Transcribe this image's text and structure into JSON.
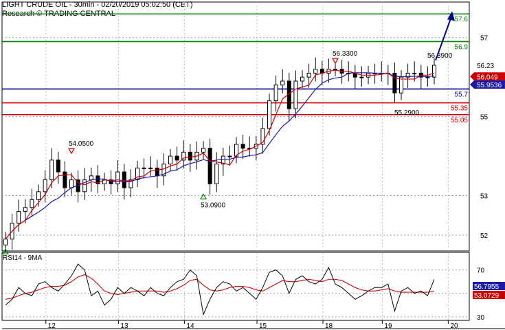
{
  "header": {
    "title": "LIGHT CRUDE OIL - 30min - 02/20/2019 05:02:50 (CET)",
    "research": "Research © TRADING CENTRAL"
  },
  "chart_data": [
    {
      "type": "candlestick",
      "panel": "price",
      "ylim": [
        51.6,
        57.9
      ],
      "yticks": [
        52,
        53,
        55,
        57
      ],
      "x_labels": [
        {
          "label": "12",
          "i": 3
        },
        {
          "label": "13",
          "i": 14
        },
        {
          "label": "14",
          "i": 24
        },
        {
          "label": "15",
          "i": 35
        },
        {
          "label": "18",
          "i": 45
        },
        {
          "label": "19",
          "i": 54
        },
        {
          "label": "20",
          "i": 64
        }
      ],
      "series_closes": [
        51.9,
        52.3,
        52.6,
        52.7,
        52.9,
        53.1,
        53.4,
        53.9,
        53.6,
        53.2,
        53.4,
        53.1,
        53.4,
        53.5,
        53.3,
        53.4,
        53.3,
        53.6,
        53.2,
        53.4,
        53.7,
        53.7,
        53.7,
        53.5,
        53.8,
        54.0,
        53.9,
        54.1,
        53.9,
        54.1,
        54.2,
        53.3,
        53.8,
        54.0,
        54.0,
        54.3,
        54.2,
        54.2,
        54.3,
        54.7,
        55.4,
        55.8,
        55.9,
        55.2,
        55.9,
        56.0,
        56.1,
        56.2,
        56.1,
        56.2,
        56.2,
        56.1,
        56.1,
        56.0,
        56.0,
        56.1,
        56.1,
        56.1,
        56.1,
        55.6,
        56.0,
        56.1,
        56.1,
        56.0,
        56.0,
        56.3
      ],
      "sma_red_label": "56.049",
      "sma_blue_label": "55.9536",
      "last_price_label": "56.23",
      "levels": [
        {
          "value": 57.6,
          "label": "57.6",
          "color": "#008000"
        },
        {
          "value": 56.9,
          "label": "56.9",
          "color": "#008000"
        },
        {
          "value": 55.7,
          "label": "55.7",
          "color": "#000090"
        },
        {
          "value": 55.35,
          "label": "55.35",
          "color": "#cc0000"
        },
        {
          "value": 55.05,
          "label": "55.05",
          "color": "#cc0000"
        }
      ],
      "annotations": [
        {
          "text": "54.0500",
          "i": 10,
          "value": 54.05,
          "marker": "down"
        },
        {
          "text": "53.0900",
          "i": 30,
          "value": 53.09,
          "marker": "up"
        },
        {
          "text": "56.3300",
          "i": 50,
          "value": 56.33,
          "marker": "down"
        },
        {
          "text": "55.2900",
          "i": 60,
          "value": 55.29,
          "marker": "none"
        },
        {
          "text": "56.3900",
          "i": 65,
          "value": 56.39,
          "marker": "none"
        },
        {
          "text": "",
          "i": 0,
          "value": 51.7,
          "marker": "up"
        }
      ],
      "projection": {
        "from_i": 65,
        "from_value": 56.39,
        "to_value": 57.6
      }
    },
    {
      "type": "line",
      "panel": "rsi",
      "title": "RSI14 - 9MA",
      "ylim": [
        27,
        85
      ],
      "yticks": [
        30,
        70
      ],
      "rsi_values": [
        40,
        45,
        55,
        50,
        48,
        58,
        60,
        55,
        52,
        58,
        65,
        75,
        70,
        48,
        52,
        40,
        45,
        55,
        50,
        55,
        52,
        48,
        55,
        50,
        48,
        55,
        60,
        62,
        70,
        65,
        32,
        45,
        55,
        60,
        58,
        52,
        55,
        50,
        45,
        55,
        68,
        70,
        65,
        50,
        62,
        65,
        60,
        58,
        62,
        72,
        58,
        55,
        50,
        45,
        48,
        52,
        55,
        55,
        58,
        35,
        52,
        55,
        50,
        52,
        48,
        62
      ],
      "ma_values": [
        45,
        46,
        48,
        50,
        51,
        53,
        55,
        56,
        56,
        57,
        60,
        64,
        66,
        63,
        58,
        52,
        50,
        49,
        50,
        51,
        52,
        52,
        52,
        52,
        51,
        52,
        54,
        57,
        61,
        62,
        57,
        53,
        52,
        53,
        55,
        56,
        56,
        55,
        53,
        52,
        55,
        58,
        61,
        60,
        60,
        61,
        62,
        61,
        60,
        62,
        62,
        61,
        58,
        55,
        53,
        52,
        52,
        53,
        54,
        52,
        51,
        51,
        51,
        51,
        51,
        52
      ],
      "rsi_label": "56.7955",
      "ma_label": "53.0729"
    }
  ]
}
